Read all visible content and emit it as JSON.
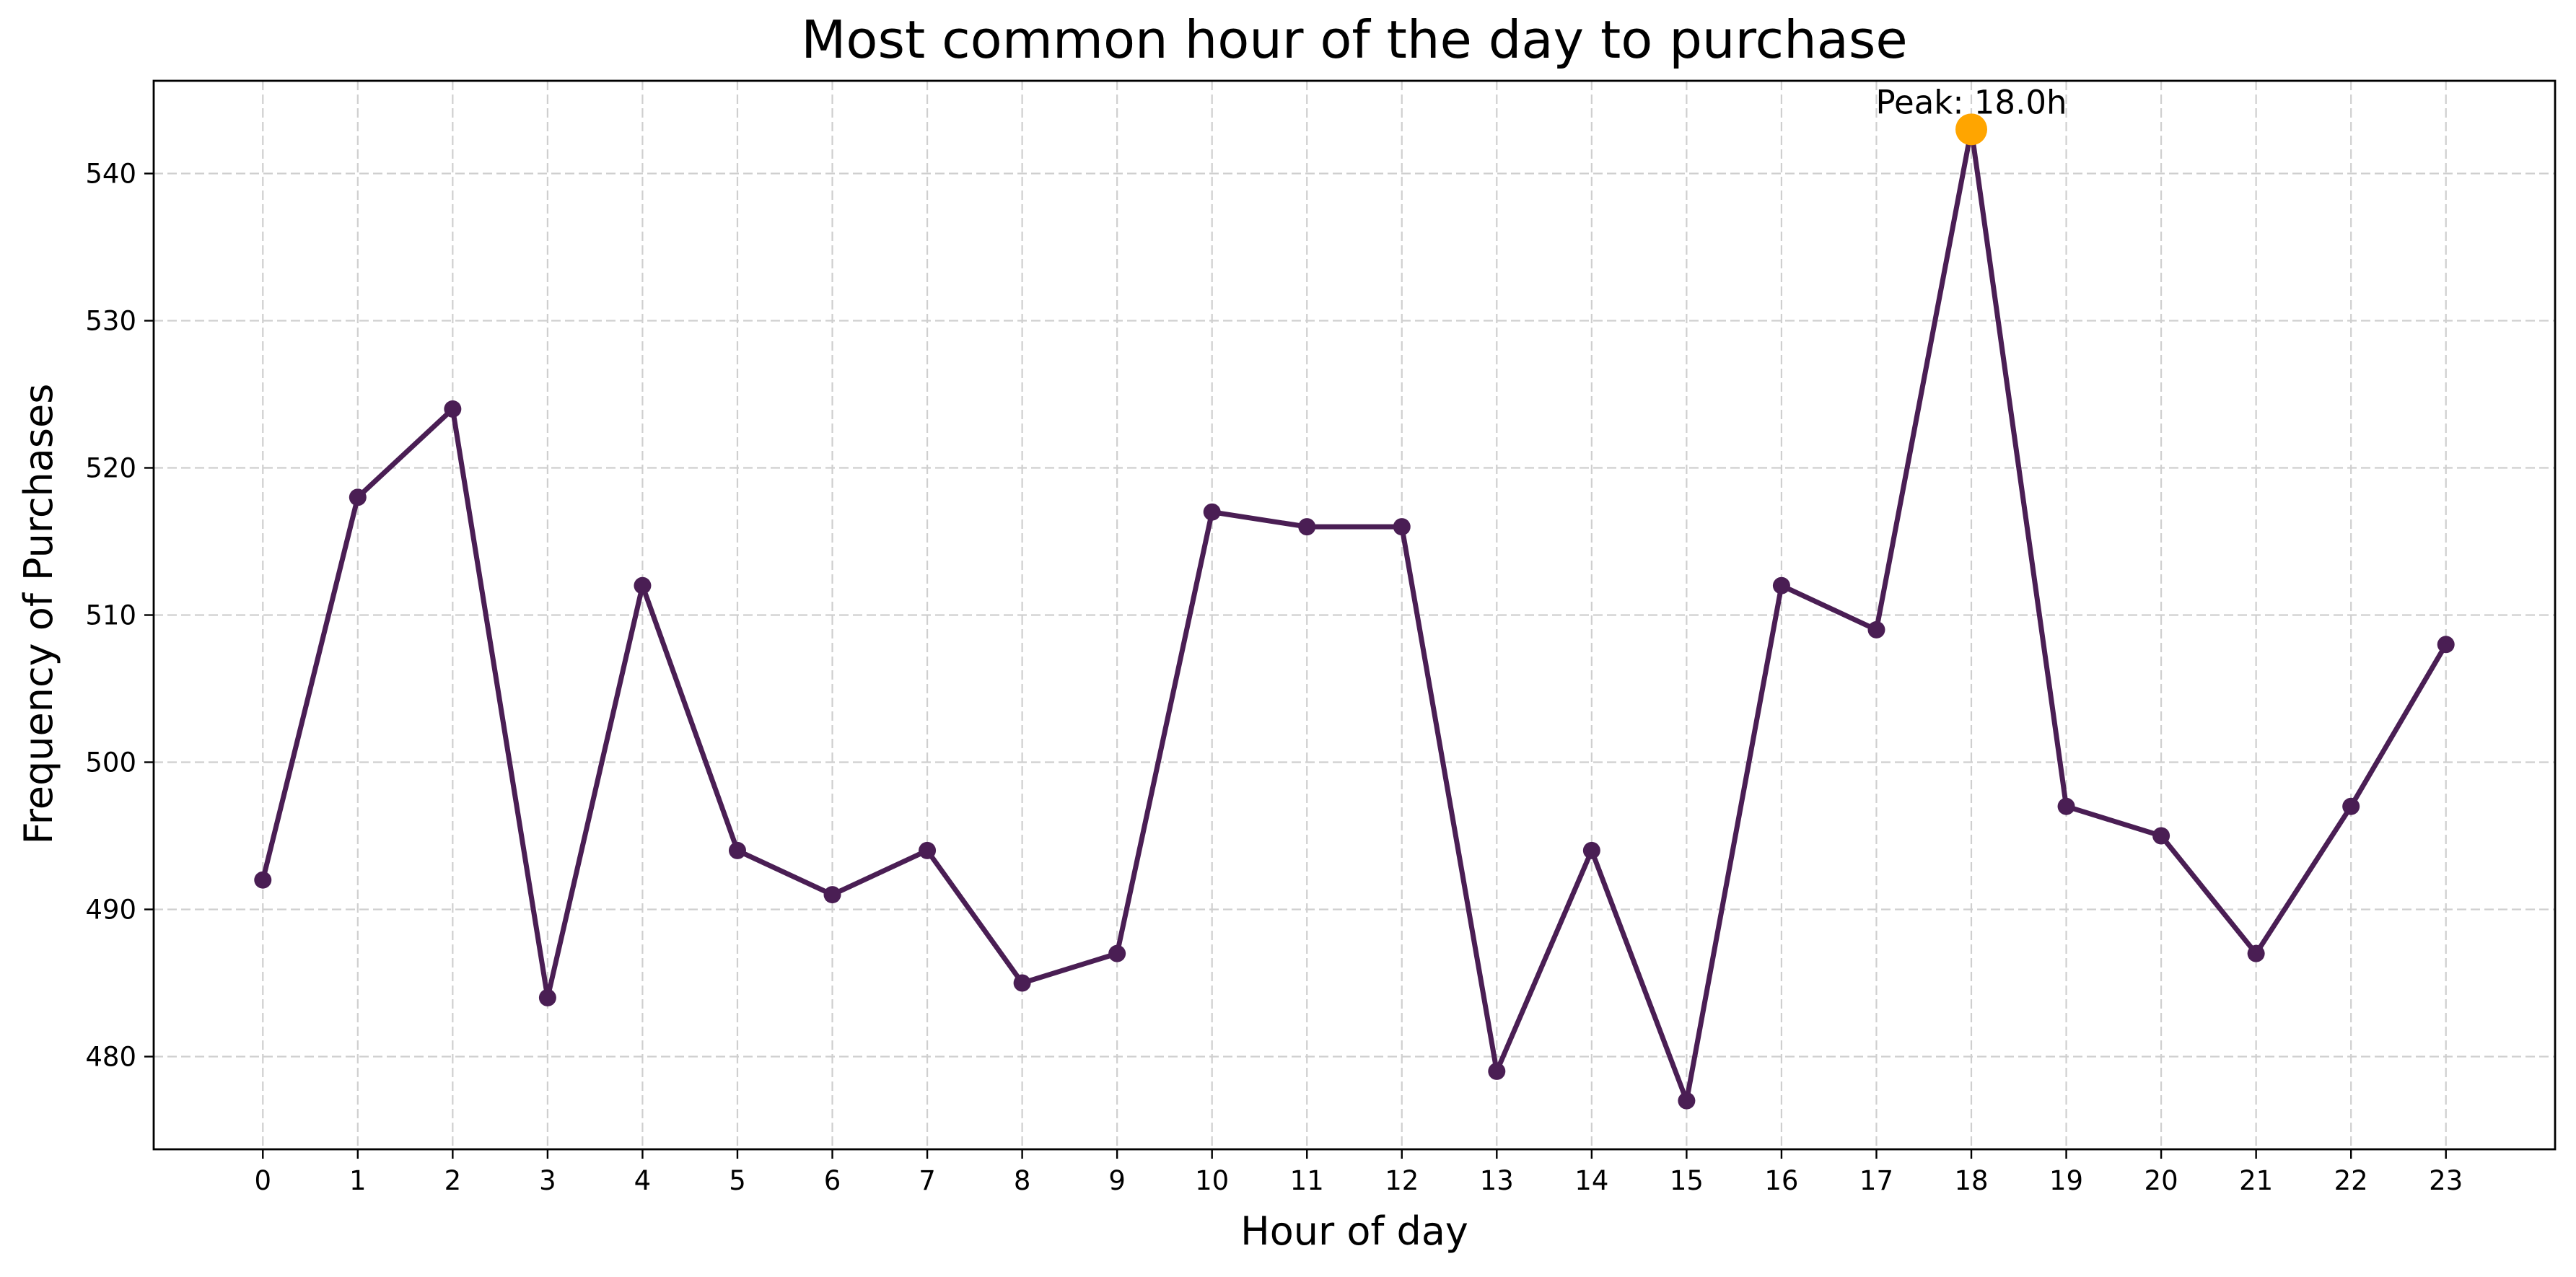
{
  "chart_data": {
    "type": "line",
    "title": "Most common hour of the day to purchase",
    "xlabel": "Hour of day",
    "ylabel": "Frequency of Purchases",
    "x": [
      0,
      1,
      2,
      3,
      4,
      5,
      6,
      7,
      8,
      9,
      10,
      11,
      12,
      13,
      14,
      15,
      16,
      17,
      18,
      19,
      20,
      21,
      22,
      23
    ],
    "series": [
      {
        "values": [
          492,
          518,
          524,
          484,
          512,
          494,
          491,
          494,
          485,
          487,
          517,
          516,
          516,
          479,
          494,
          477,
          512,
          509,
          543,
          497,
          495,
          487,
          497,
          508
        ]
      }
    ],
    "xlim": [
      -1.15,
      24.15
    ],
    "ylim": [
      473.7,
      546.3
    ],
    "yticks": [
      480,
      490,
      500,
      510,
      520,
      530,
      540
    ],
    "grid": true,
    "line_color": "#4a1e54",
    "peak": {
      "x": 18,
      "y": 543,
      "label": "Peak: 18.0h",
      "color": "#ffa500"
    }
  }
}
